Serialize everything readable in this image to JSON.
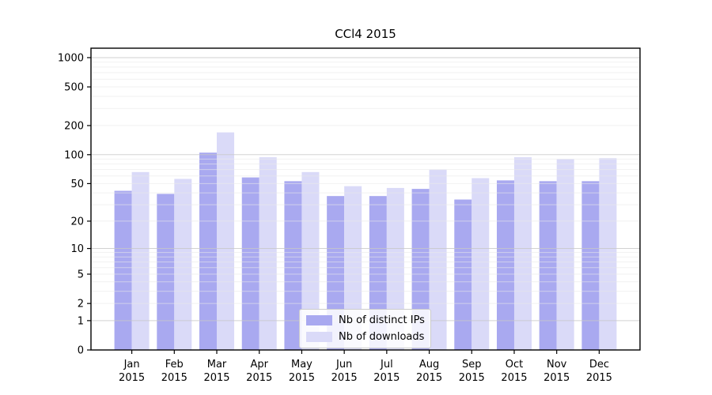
{
  "chart_data": {
    "type": "bar",
    "title": "CCl4 2015",
    "scale": "log10(value+1)",
    "categories": [
      "Jan",
      "Feb",
      "Mar",
      "Apr",
      "May",
      "Jun",
      "Jul",
      "Aug",
      "Sep",
      "Oct",
      "Nov",
      "Dec"
    ],
    "year_label": "2015",
    "series": [
      {
        "name": "Nb of distinct IPs",
        "values": [
          42,
          39,
          105,
          58,
          53,
          37,
          37,
          44,
          34,
          54,
          53,
          53
        ]
      },
      {
        "name": "Nb of downloads",
        "values": [
          66,
          56,
          170,
          94,
          66,
          47,
          45,
          70,
          57,
          94,
          90,
          92
        ]
      }
    ],
    "yticks": [
      0,
      1,
      2,
      5,
      10,
      20,
      50,
      100,
      200,
      500,
      1000
    ],
    "ytick_labels": [
      "0",
      "1",
      "2",
      "5",
      "10",
      "20",
      "50",
      "100",
      "200",
      "500",
      "1000"
    ],
    "ylim": [
      0,
      1250
    ],
    "grid": "major and minor horizontal",
    "legend_position": "lower center"
  },
  "colors": {
    "bar_ips": "#a9a9f0",
    "bar_downloads": "#dadaf8",
    "grid_major": "#c8c8c8",
    "grid_minor": "#e9e9e9",
    "axis": "#000000",
    "text": "#000000",
    "legend_border": "#cccccc"
  }
}
